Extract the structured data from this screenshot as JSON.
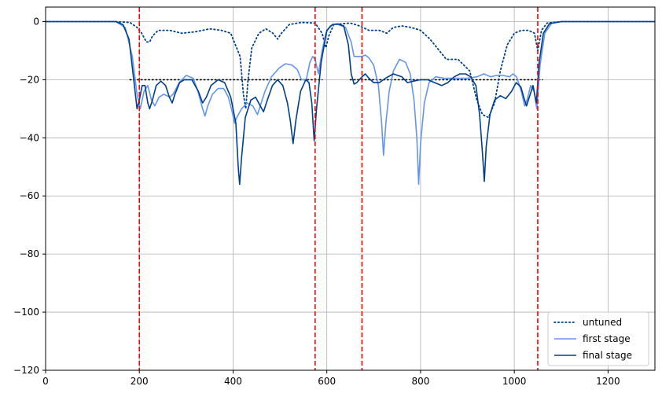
{
  "chart_data": {
    "type": "line",
    "title": "",
    "xlabel": "",
    "ylabel": "",
    "xlim": [
      0,
      1300
    ],
    "ylim": [
      -120,
      5
    ],
    "xticks": [
      0,
      200,
      400,
      600,
      800,
      1000,
      1200
    ],
    "yticks": [
      -120,
      -100,
      -80,
      -60,
      -40,
      -20,
      0
    ],
    "grid": true,
    "legend_position": "lower-right",
    "vlines": {
      "x": [
        200,
        575,
        675,
        1050
      ],
      "color": "#ff0000",
      "style": "dashed"
    },
    "reference_lines": [
      {
        "x": [
          180,
          590
        ],
        "y": -20,
        "style": "dotted",
        "color": "#000000"
      },
      {
        "x": [
          650,
          1060
        ],
        "y": -20,
        "style": "dotted",
        "color": "#000000"
      }
    ],
    "series": [
      {
        "name": "untuned",
        "style": "dotted",
        "color": "#003f8a",
        "points": [
          [
            0,
            0
          ],
          [
            150,
            0
          ],
          [
            180,
            -0.3
          ],
          [
            195,
            -2
          ],
          [
            205,
            -4
          ],
          [
            215,
            -7
          ],
          [
            222,
            -7
          ],
          [
            228,
            -5
          ],
          [
            240,
            -3
          ],
          [
            265,
            -3
          ],
          [
            290,
            -4
          ],
          [
            320,
            -3.5
          ],
          [
            350,
            -2.5
          ],
          [
            375,
            -3
          ],
          [
            395,
            -4
          ],
          [
            405,
            -8
          ],
          [
            415,
            -12
          ],
          [
            422,
            -25
          ],
          [
            427,
            -30
          ],
          [
            432,
            -20
          ],
          [
            440,
            -9
          ],
          [
            455,
            -4
          ],
          [
            470,
            -2.5
          ],
          [
            485,
            -4
          ],
          [
            495,
            -6
          ],
          [
            503,
            -4
          ],
          [
            520,
            -1
          ],
          [
            545,
            -0.3
          ],
          [
            575,
            -0.5
          ],
          [
            590,
            -4
          ],
          [
            598,
            -9
          ],
          [
            604,
            -5
          ],
          [
            615,
            -1
          ],
          [
            650,
            -0.5
          ],
          [
            670,
            -1.5
          ],
          [
            690,
            -3
          ],
          [
            712,
            -3
          ],
          [
            728,
            -4
          ],
          [
            742,
            -2
          ],
          [
            760,
            -1.5
          ],
          [
            780,
            -2
          ],
          [
            800,
            -3
          ],
          [
            820,
            -6
          ],
          [
            840,
            -10
          ],
          [
            855,
            -13
          ],
          [
            880,
            -13
          ],
          [
            905,
            -17
          ],
          [
            920,
            -27
          ],
          [
            932,
            -32
          ],
          [
            945,
            -33
          ],
          [
            958,
            -28
          ],
          [
            970,
            -17
          ],
          [
            985,
            -8
          ],
          [
            1000,
            -4
          ],
          [
            1015,
            -3
          ],
          [
            1030,
            -3
          ],
          [
            1043,
            -4
          ],
          [
            1050,
            -10
          ],
          [
            1058,
            -3
          ],
          [
            1070,
            -0.5
          ],
          [
            1100,
            0
          ],
          [
            1300,
            0
          ]
        ]
      },
      {
        "name": "first stage",
        "style": "solid",
        "color": "#6495ed",
        "points": [
          [
            0,
            0
          ],
          [
            150,
            0
          ],
          [
            170,
            -2
          ],
          [
            185,
            -12
          ],
          [
            195,
            -25
          ],
          [
            202,
            -30
          ],
          [
            210,
            -24
          ],
          [
            218,
            -22
          ],
          [
            226,
            -27
          ],
          [
            233,
            -29
          ],
          [
            242,
            -26
          ],
          [
            252,
            -25
          ],
          [
            265,
            -26
          ],
          [
            272,
            -25
          ],
          [
            285,
            -21
          ],
          [
            300,
            -18.5
          ],
          [
            315,
            -19.5
          ],
          [
            325,
            -24
          ],
          [
            335,
            -30
          ],
          [
            340,
            -32.5
          ],
          [
            346,
            -29
          ],
          [
            356,
            -25
          ],
          [
            368,
            -23
          ],
          [
            380,
            -23
          ],
          [
            390,
            -26
          ],
          [
            398,
            -31
          ],
          [
            403,
            -35
          ],
          [
            408,
            -33
          ],
          [
            418,
            -30
          ],
          [
            430,
            -28
          ],
          [
            442,
            -29
          ],
          [
            452,
            -32
          ],
          [
            458,
            -29
          ],
          [
            468,
            -24
          ],
          [
            482,
            -19
          ],
          [
            498,
            -16
          ],
          [
            512,
            -14.5
          ],
          [
            526,
            -15
          ],
          [
            537,
            -16.5
          ],
          [
            546,
            -20
          ],
          [
            556,
            -20
          ],
          [
            564,
            -14
          ],
          [
            570,
            -12
          ],
          [
            575,
            -13
          ],
          [
            582,
            -18
          ],
          [
            590,
            -10
          ],
          [
            598,
            -4
          ],
          [
            607,
            -1.5
          ],
          [
            620,
            -0.8
          ],
          [
            640,
            -2
          ],
          [
            652,
            -7
          ],
          [
            658,
            -12
          ],
          [
            665,
            -12
          ],
          [
            675,
            -12
          ],
          [
            682,
            -11.5
          ],
          [
            690,
            -12.5
          ],
          [
            700,
            -15
          ],
          [
            710,
            -22
          ],
          [
            717,
            -35
          ],
          [
            721,
            -46
          ],
          [
            726,
            -35
          ],
          [
            733,
            -24
          ],
          [
            742,
            -17
          ],
          [
            755,
            -13
          ],
          [
            768,
            -14
          ],
          [
            778,
            -18
          ],
          [
            786,
            -27
          ],
          [
            792,
            -40
          ],
          [
            796,
            -56
          ],
          [
            800,
            -42
          ],
          [
            808,
            -28
          ],
          [
            818,
            -21
          ],
          [
            832,
            -19
          ],
          [
            850,
            -19.5
          ],
          [
            870,
            -19.5
          ],
          [
            900,
            -19.5
          ],
          [
            920,
            -19
          ],
          [
            935,
            -18
          ],
          [
            950,
            -19
          ],
          [
            962,
            -18.5
          ],
          [
            975,
            -18.5
          ],
          [
            990,
            -19
          ],
          [
            997,
            -18
          ],
          [
            1005,
            -19
          ],
          [
            1015,
            -24
          ],
          [
            1022,
            -29
          ],
          [
            1027,
            -27
          ],
          [
            1035,
            -22
          ],
          [
            1042,
            -24
          ],
          [
            1048,
            -30
          ],
          [
            1055,
            -15
          ],
          [
            1065,
            -4
          ],
          [
            1080,
            -0.5
          ],
          [
            1100,
            0
          ],
          [
            1300,
            0
          ]
        ]
      },
      {
        "name": "final stage",
        "style": "solid",
        "color": "#003f8a",
        "points": [
          [
            0,
            0
          ],
          [
            150,
            0
          ],
          [
            165,
            -1
          ],
          [
            178,
            -6
          ],
          [
            188,
            -20
          ],
          [
            195,
            -30
          ],
          [
            200,
            -27
          ],
          [
            206,
            -22
          ],
          [
            212,
            -22
          ],
          [
            218,
            -28
          ],
          [
            222,
            -30
          ],
          [
            228,
            -27
          ],
          [
            236,
            -22
          ],
          [
            246,
            -20.5
          ],
          [
            256,
            -22
          ],
          [
            264,
            -26
          ],
          [
            270,
            -28
          ],
          [
            276,
            -25
          ],
          [
            286,
            -21
          ],
          [
            296,
            -20
          ],
          [
            312,
            -20
          ],
          [
            326,
            -24
          ],
          [
            335,
            -28
          ],
          [
            343,
            -26
          ],
          [
            353,
            -22
          ],
          [
            368,
            -20
          ],
          [
            382,
            -21
          ],
          [
            395,
            -26
          ],
          [
            406,
            -35
          ],
          [
            411,
            -50
          ],
          [
            414,
            -56
          ],
          [
            418,
            -47
          ],
          [
            426,
            -33
          ],
          [
            438,
            -27
          ],
          [
            448,
            -26
          ],
          [
            458,
            -29
          ],
          [
            465,
            -31
          ],
          [
            473,
            -27
          ],
          [
            484,
            -22
          ],
          [
            495,
            -20
          ],
          [
            506,
            -22
          ],
          [
            516,
            -28
          ],
          [
            522,
            -34
          ],
          [
            528,
            -42
          ],
          [
            534,
            -34
          ],
          [
            544,
            -24
          ],
          [
            555,
            -20
          ],
          [
            562,
            -21
          ],
          [
            568,
            -28
          ],
          [
            573,
            -41
          ],
          [
            578,
            -30
          ],
          [
            588,
            -14
          ],
          [
            600,
            -3
          ],
          [
            612,
            -1
          ],
          [
            624,
            -0.8
          ],
          [
            636,
            -1.5
          ],
          [
            646,
            -8
          ],
          [
            652,
            -18
          ],
          [
            658,
            -21.5
          ],
          [
            664,
            -21
          ],
          [
            672,
            -19.5
          ],
          [
            682,
            -18
          ],
          [
            690,
            -19.5
          ],
          [
            700,
            -21
          ],
          [
            712,
            -21
          ],
          [
            725,
            -19.5
          ],
          [
            742,
            -18
          ],
          [
            760,
            -19
          ],
          [
            772,
            -21
          ],
          [
            785,
            -20.5
          ],
          [
            800,
            -20
          ],
          [
            815,
            -20
          ],
          [
            830,
            -21
          ],
          [
            845,
            -22
          ],
          [
            858,
            -21
          ],
          [
            872,
            -19
          ],
          [
            884,
            -18
          ],
          [
            896,
            -18
          ],
          [
            907,
            -19
          ],
          [
            918,
            -22
          ],
          [
            926,
            -32
          ],
          [
            932,
            -45
          ],
          [
            936,
            -55
          ],
          [
            940,
            -43
          ],
          [
            948,
            -32
          ],
          [
            958,
            -27
          ],
          [
            970,
            -25.5
          ],
          [
            982,
            -26.5
          ],
          [
            994,
            -24
          ],
          [
            1004,
            -21
          ],
          [
            1014,
            -22.5
          ],
          [
            1020,
            -26
          ],
          [
            1026,
            -29
          ],
          [
            1032,
            -26
          ],
          [
            1040,
            -22
          ],
          [
            1047,
            -28
          ],
          [
            1053,
            -14
          ],
          [
            1062,
            -4
          ],
          [
            1075,
            -0.7
          ],
          [
            1100,
            0
          ],
          [
            1300,
            0
          ]
        ]
      }
    ]
  }
}
